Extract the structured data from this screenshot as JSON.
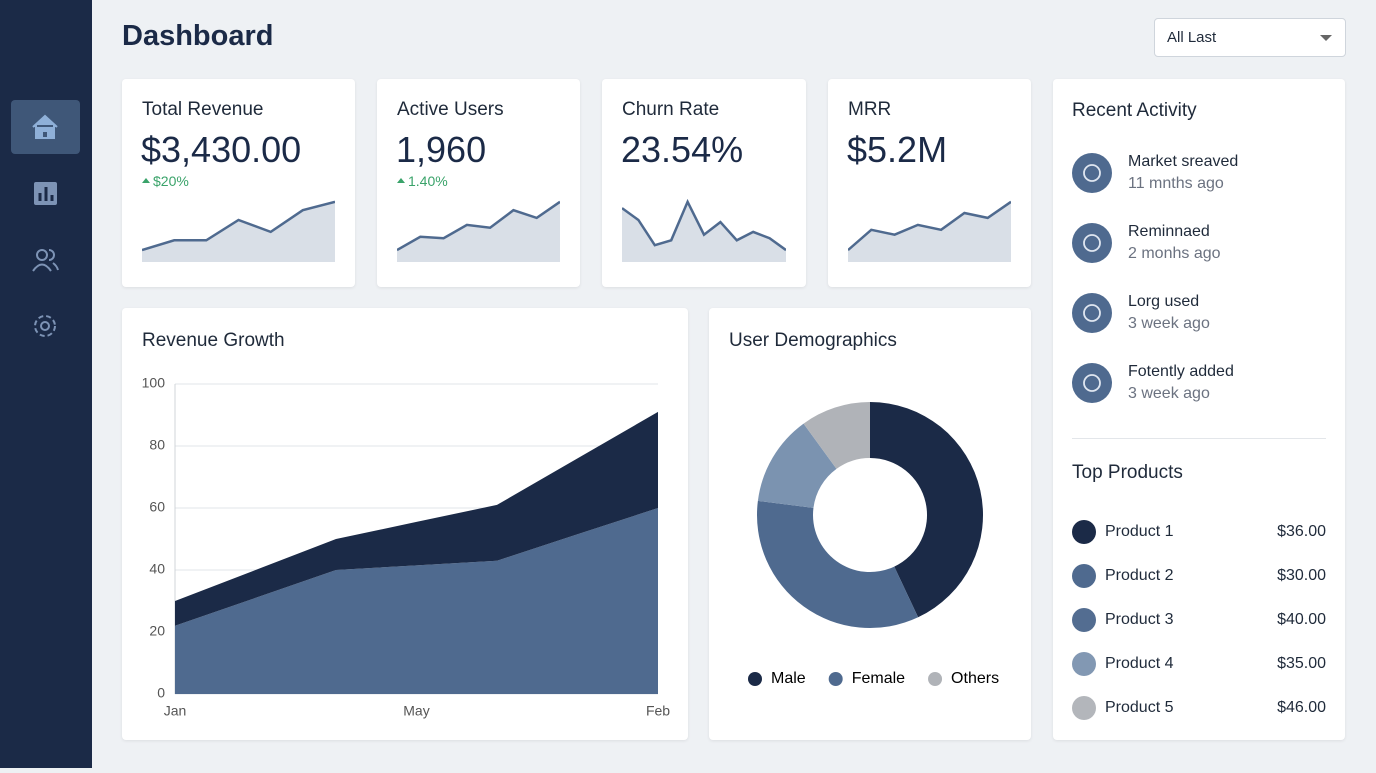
{
  "header": {
    "title": "Dashboard",
    "dropdown": "All Last"
  },
  "kpis": [
    {
      "title": "Total Revenue",
      "value": "$3,430.00",
      "change": "$20%",
      "sparkline": [
        17,
        31,
        31,
        60,
        43,
        74,
        86
      ]
    },
    {
      "title": "Active Users",
      "value": "1,960",
      "change": "1.40%",
      "sparkline": [
        17,
        36,
        34,
        53,
        49,
        74,
        63,
        86
      ]
    },
    {
      "title": "Churn Rate",
      "value": "23.54%",
      "sparkline": [
        77,
        60,
        24,
        31,
        86,
        39,
        57,
        31,
        43,
        34,
        17
      ]
    },
    {
      "title": "MRR",
      "value": "$5.2M",
      "sparkline": [
        17,
        46,
        39,
        53,
        46,
        70,
        63,
        86
      ]
    }
  ],
  "chart_data": [
    {
      "type": "area",
      "stacked": true,
      "title": "Revenue Growth",
      "categories": [
        "Jan",
        null,
        null,
        "May",
        null,
        null,
        "Feb"
      ],
      "series": [
        {
          "color": "#4f6a8f",
          "values": [
            22,
            31,
            40,
            41.5,
            43,
            51.5,
            60
          ]
        },
        {
          "color": "#1b2a47",
          "values": [
            8,
            9,
            10,
            14,
            18,
            24.5,
            31
          ]
        }
      ],
      "ylim": [
        0,
        100
      ],
      "yticks": [
        0,
        20,
        40,
        60,
        80,
        100
      ],
      "grid": true
    },
    {
      "type": "donut",
      "title": "User Demographics",
      "labels": [
        "Male",
        "Female",
        null,
        "Others"
      ],
      "values": [
        43,
        34,
        13,
        10
      ],
      "colors": [
        "#1b2a47",
        "#4f6a8f",
        "#7b93b0",
        "#b0b3b8"
      ]
    }
  ],
  "recent_activity": {
    "title": "Recent Activity",
    "items": [
      {
        "title": "Market sreaved",
        "time": "11 mnths ago"
      },
      {
        "title": "Reminnaed",
        "time": "2 monhs ago"
      },
      {
        "title": "Lorg used",
        "time": "3 week ago"
      },
      {
        "title": "Fotently added",
        "time": "3 week ago"
      }
    ]
  },
  "top_products": {
    "title": "Top Products",
    "items": [
      {
        "name": "Product 1",
        "price": "$36.00",
        "color": "#1b2a47"
      },
      {
        "name": "Product 2",
        "price": "$30.00",
        "color": "#4f6a8f"
      },
      {
        "name": "Product 3",
        "price": "$40.00",
        "color": "#536d91"
      },
      {
        "name": "Product 4",
        "price": "$35.00",
        "color": "#8298b3"
      },
      {
        "name": "Product 5",
        "price": "$46.00",
        "color": "#b3b6bb"
      }
    ]
  }
}
